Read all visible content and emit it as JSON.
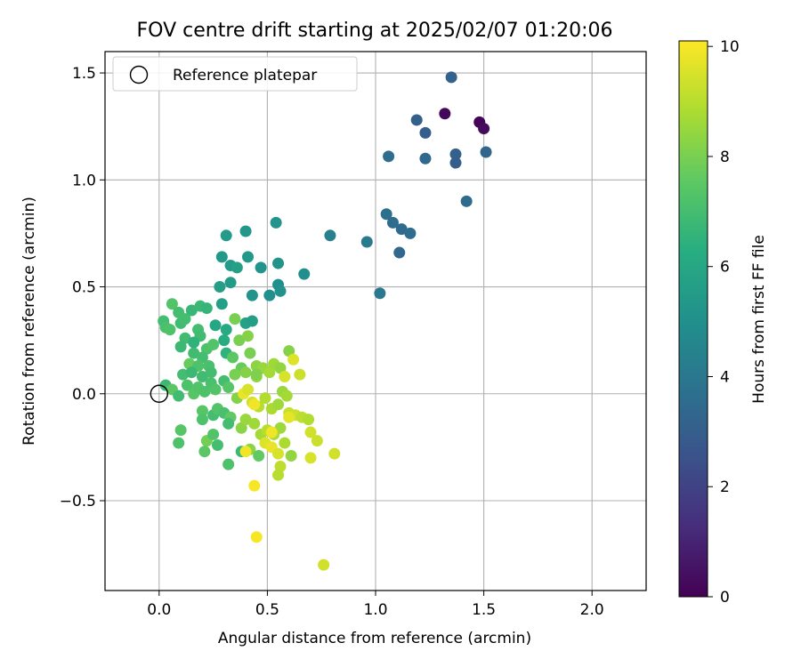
{
  "chart_data": {
    "type": "scatter",
    "title": "FOV centre drift starting at 2025/02/07 01:20:06",
    "xlabel": "Angular distance from reference (arcmin)",
    "ylabel": "Rotation from reference (arcmin)",
    "xlim": [
      -0.25,
      2.25
    ],
    "ylim": [
      -0.92,
      1.6
    ],
    "xticks": [
      0.0,
      0.5,
      1.0,
      1.5,
      2.0
    ],
    "xtick_labels": [
      "0.0",
      "0.5",
      "1.0",
      "1.5",
      "2.0"
    ],
    "yticks": [
      -0.5,
      0.0,
      0.5,
      1.0,
      1.5
    ],
    "ytick_labels": [
      "−0.5",
      "0.0",
      "0.5",
      "1.0",
      "1.5"
    ],
    "grid": true,
    "legend": {
      "placement": "top-left",
      "entries": [
        {
          "label": "Reference platepar",
          "marker": "open-circle"
        }
      ]
    },
    "reference_point": {
      "x": 0.0,
      "y": 0.0
    },
    "colorbar": {
      "label": "Hours from first FF file",
      "colormap": "viridis",
      "range": [
        0,
        10.1
      ],
      "ticks": [
        0,
        2,
        4,
        6,
        8,
        10
      ],
      "tick_labels": [
        "0",
        "2",
        "4",
        "6",
        "8",
        "10"
      ]
    },
    "points": [
      {
        "x": 1.32,
        "y": 1.31,
        "c": 0.2
      },
      {
        "x": 1.48,
        "y": 1.27,
        "c": 0.1
      },
      {
        "x": 1.5,
        "y": 1.24,
        "c": 0.3
      },
      {
        "x": 1.35,
        "y": 1.48,
        "c": 3.2
      },
      {
        "x": 1.19,
        "y": 1.28,
        "c": 3.1
      },
      {
        "x": 1.23,
        "y": 1.22,
        "c": 3.0
      },
      {
        "x": 1.37,
        "y": 1.12,
        "c": 3.1
      },
      {
        "x": 1.37,
        "y": 1.08,
        "c": 3.0
      },
      {
        "x": 1.51,
        "y": 1.13,
        "c": 3.3
      },
      {
        "x": 1.23,
        "y": 1.1,
        "c": 3.4
      },
      {
        "x": 1.06,
        "y": 1.11,
        "c": 3.6
      },
      {
        "x": 1.42,
        "y": 0.9,
        "c": 3.5
      },
      {
        "x": 1.05,
        "y": 0.84,
        "c": 3.7
      },
      {
        "x": 1.08,
        "y": 0.8,
        "c": 3.6
      },
      {
        "x": 1.12,
        "y": 0.77,
        "c": 3.5
      },
      {
        "x": 1.16,
        "y": 0.75,
        "c": 3.6
      },
      {
        "x": 1.11,
        "y": 0.66,
        "c": 3.4
      },
      {
        "x": 0.96,
        "y": 0.71,
        "c": 4.1
      },
      {
        "x": 0.79,
        "y": 0.74,
        "c": 4.3
      },
      {
        "x": 1.02,
        "y": 0.47,
        "c": 4.0
      },
      {
        "x": 0.54,
        "y": 0.8,
        "c": 5.2
      },
      {
        "x": 0.31,
        "y": 0.74,
        "c": 5.5
      },
      {
        "x": 0.4,
        "y": 0.76,
        "c": 5.3
      },
      {
        "x": 0.29,
        "y": 0.64,
        "c": 5.4
      },
      {
        "x": 0.33,
        "y": 0.6,
        "c": 5.5
      },
      {
        "x": 0.36,
        "y": 0.59,
        "c": 5.7
      },
      {
        "x": 0.41,
        "y": 0.64,
        "c": 5.4
      },
      {
        "x": 0.47,
        "y": 0.59,
        "c": 5.2
      },
      {
        "x": 0.55,
        "y": 0.61,
        "c": 5.2
      },
      {
        "x": 0.67,
        "y": 0.56,
        "c": 5.0
      },
      {
        "x": 0.28,
        "y": 0.5,
        "c": 5.6
      },
      {
        "x": 0.33,
        "y": 0.52,
        "c": 5.5
      },
      {
        "x": 0.55,
        "y": 0.51,
        "c": 5.0
      },
      {
        "x": 0.56,
        "y": 0.48,
        "c": 5.1
      },
      {
        "x": 0.51,
        "y": 0.46,
        "c": 5.0
      },
      {
        "x": 0.43,
        "y": 0.46,
        "c": 5.2
      },
      {
        "x": 0.29,
        "y": 0.42,
        "c": 5.7
      },
      {
        "x": 0.4,
        "y": 0.33,
        "c": 5.8
      },
      {
        "x": 0.43,
        "y": 0.34,
        "c": 5.6
      },
      {
        "x": 0.26,
        "y": 0.32,
        "c": 6.0
      },
      {
        "x": 0.31,
        "y": 0.3,
        "c": 6.1
      },
      {
        "x": 0.06,
        "y": 0.42,
        "c": 7.3
      },
      {
        "x": 0.09,
        "y": 0.38,
        "c": 7.0
      },
      {
        "x": 0.15,
        "y": 0.39,
        "c": 6.7
      },
      {
        "x": 0.19,
        "y": 0.41,
        "c": 6.8
      },
      {
        "x": 0.22,
        "y": 0.4,
        "c": 6.6
      },
      {
        "x": 0.1,
        "y": 0.33,
        "c": 6.9
      },
      {
        "x": 0.12,
        "y": 0.35,
        "c": 7.0
      },
      {
        "x": 0.02,
        "y": 0.34,
        "c": 7.0
      },
      {
        "x": 0.03,
        "y": 0.31,
        "c": 7.1
      },
      {
        "x": 0.05,
        "y": 0.3,
        "c": 7.2
      },
      {
        "x": 0.12,
        "y": 0.26,
        "c": 6.9
      },
      {
        "x": 0.1,
        "y": 0.22,
        "c": 6.8
      },
      {
        "x": 0.18,
        "y": 0.3,
        "c": 7.0
      },
      {
        "x": 0.19,
        "y": 0.27,
        "c": 6.9
      },
      {
        "x": 0.22,
        "y": 0.21,
        "c": 7.2
      },
      {
        "x": 0.25,
        "y": 0.23,
        "c": 7.3
      },
      {
        "x": 0.3,
        "y": 0.25,
        "c": 6.2
      },
      {
        "x": 0.35,
        "y": 0.35,
        "c": 8.0
      },
      {
        "x": 0.37,
        "y": 0.25,
        "c": 8.0
      },
      {
        "x": 0.41,
        "y": 0.27,
        "c": 8.2
      },
      {
        "x": 0.31,
        "y": 0.19,
        "c": 6.5
      },
      {
        "x": 0.34,
        "y": 0.17,
        "c": 7.5
      },
      {
        "x": 0.38,
        "y": 0.12,
        "c": 7.7
      },
      {
        "x": 0.42,
        "y": 0.19,
        "c": 8.0
      },
      {
        "x": 0.45,
        "y": 0.13,
        "c": 8.3
      },
      {
        "x": 0.14,
        "y": 0.14,
        "c": 7.7
      },
      {
        "x": 0.16,
        "y": 0.19,
        "c": 6.9
      },
      {
        "x": 0.2,
        "y": 0.17,
        "c": 7.0
      },
      {
        "x": 0.23,
        "y": 0.13,
        "c": 7.1
      },
      {
        "x": 0.18,
        "y": 0.13,
        "c": 7.2
      },
      {
        "x": 0.11,
        "y": 0.09,
        "c": 7.0
      },
      {
        "x": 0.15,
        "y": 0.1,
        "c": 6.8
      },
      {
        "x": 0.2,
        "y": 0.08,
        "c": 6.9
      },
      {
        "x": 0.24,
        "y": 0.1,
        "c": 7.0
      },
      {
        "x": 0.03,
        "y": 0.04,
        "c": 6.8
      },
      {
        "x": 0.06,
        "y": 0.02,
        "c": 7.5
      },
      {
        "x": 0.09,
        "y": -0.01,
        "c": 6.9
      },
      {
        "x": 0.13,
        "y": 0.04,
        "c": 7.2
      },
      {
        "x": 0.16,
        "y": 0.0,
        "c": 7.4
      },
      {
        "x": 0.18,
        "y": 0.03,
        "c": 7.3
      },
      {
        "x": 0.21,
        "y": 0.01,
        "c": 7.2
      },
      {
        "x": 0.24,
        "y": 0.05,
        "c": 7.1
      },
      {
        "x": 0.26,
        "y": 0.02,
        "c": 7.3
      },
      {
        "x": 0.3,
        "y": 0.06,
        "c": 7.0
      },
      {
        "x": 0.32,
        "y": 0.03,
        "c": 7.4
      },
      {
        "x": 0.35,
        "y": 0.09,
        "c": 8.0
      },
      {
        "x": 0.4,
        "y": 0.1,
        "c": 8.2
      },
      {
        "x": 0.45,
        "y": 0.08,
        "c": 8.4
      },
      {
        "x": 0.48,
        "y": 0.12,
        "c": 8.5
      },
      {
        "x": 0.51,
        "y": 0.1,
        "c": 8.7
      },
      {
        "x": 0.53,
        "y": 0.14,
        "c": 8.6
      },
      {
        "x": 0.56,
        "y": 0.12,
        "c": 8.4
      },
      {
        "x": 0.6,
        "y": 0.2,
        "c": 8.2
      },
      {
        "x": 0.62,
        "y": 0.16,
        "c": 9.6
      },
      {
        "x": 0.65,
        "y": 0.09,
        "c": 9.3
      },
      {
        "x": 0.58,
        "y": 0.08,
        "c": 9.5
      },
      {
        "x": 0.36,
        "y": -0.02,
        "c": 8.2
      },
      {
        "x": 0.39,
        "y": 0.0,
        "c": 9.8
      },
      {
        "x": 0.41,
        "y": 0.02,
        "c": 9.5
      },
      {
        "x": 0.43,
        "y": -0.04,
        "c": 9.4
      },
      {
        "x": 0.46,
        "y": -0.06,
        "c": 9.0
      },
      {
        "x": 0.49,
        "y": -0.02,
        "c": 8.9
      },
      {
        "x": 0.52,
        "y": -0.07,
        "c": 8.8
      },
      {
        "x": 0.55,
        "y": -0.05,
        "c": 8.6
      },
      {
        "x": 0.57,
        "y": 0.01,
        "c": 8.5
      },
      {
        "x": 0.59,
        "y": -0.01,
        "c": 8.7
      },
      {
        "x": 0.6,
        "y": -0.09,
        "c": 9.2
      },
      {
        "x": 0.63,
        "y": -0.1,
        "c": 9.3
      },
      {
        "x": 0.66,
        "y": -0.11,
        "c": 9.1
      },
      {
        "x": 0.69,
        "y": -0.12,
        "c": 8.9
      },
      {
        "x": 0.2,
        "y": -0.08,
        "c": 7.4
      },
      {
        "x": 0.2,
        "y": -0.12,
        "c": 7.2
      },
      {
        "x": 0.25,
        "y": -0.1,
        "c": 7.0
      },
      {
        "x": 0.27,
        "y": -0.07,
        "c": 7.3
      },
      {
        "x": 0.3,
        "y": -0.09,
        "c": 7.1
      },
      {
        "x": 0.33,
        "y": -0.11,
        "c": 7.6
      },
      {
        "x": 0.32,
        "y": -0.14,
        "c": 7.0
      },
      {
        "x": 0.38,
        "y": -0.16,
        "c": 8.3
      },
      {
        "x": 0.4,
        "y": -0.12,
        "c": 8.5
      },
      {
        "x": 0.44,
        "y": -0.14,
        "c": 8.6
      },
      {
        "x": 0.47,
        "y": -0.19,
        "c": 8.7
      },
      {
        "x": 0.5,
        "y": -0.17,
        "c": 9.0
      },
      {
        "x": 0.53,
        "y": -0.19,
        "c": 8.8
      },
      {
        "x": 0.56,
        "y": -0.16,
        "c": 8.6
      },
      {
        "x": 0.58,
        "y": -0.23,
        "c": 8.8
      },
      {
        "x": 0.61,
        "y": -0.29,
        "c": 8.4
      },
      {
        "x": 0.7,
        "y": -0.18,
        "c": 9.4
      },
      {
        "x": 0.73,
        "y": -0.22,
        "c": 9.3
      },
      {
        "x": 0.7,
        "y": -0.3,
        "c": 9.5
      },
      {
        "x": 0.81,
        "y": -0.28,
        "c": 9.4
      },
      {
        "x": 0.1,
        "y": -0.17,
        "c": 7.4
      },
      {
        "x": 0.09,
        "y": -0.23,
        "c": 7.2
      },
      {
        "x": 0.22,
        "y": -0.22,
        "c": 7.9
      },
      {
        "x": 0.21,
        "y": -0.27,
        "c": 7.5
      },
      {
        "x": 0.25,
        "y": -0.19,
        "c": 7.3
      },
      {
        "x": 0.27,
        "y": -0.24,
        "c": 7.0
      },
      {
        "x": 0.32,
        "y": -0.33,
        "c": 7.2
      },
      {
        "x": 0.38,
        "y": -0.27,
        "c": 6.8
      },
      {
        "x": 0.42,
        "y": -0.26,
        "c": 8.3
      },
      {
        "x": 0.46,
        "y": -0.29,
        "c": 7.6
      },
      {
        "x": 0.49,
        "y": -0.23,
        "c": 9.6
      },
      {
        "x": 0.52,
        "y": -0.25,
        "c": 9.8
      },
      {
        "x": 0.55,
        "y": -0.28,
        "c": 9.5
      },
      {
        "x": 0.56,
        "y": -0.34,
        "c": 9.1
      },
      {
        "x": 0.55,
        "y": -0.38,
        "c": 9.0
      },
      {
        "x": 0.44,
        "y": -0.43,
        "c": 10.0
      },
      {
        "x": 0.45,
        "y": -0.67,
        "c": 10.0
      },
      {
        "x": 0.76,
        "y": -0.8,
        "c": 9.4
      },
      {
        "x": 0.4,
        "y": -0.27,
        "c": 9.9
      },
      {
        "x": 0.44,
        "y": -0.05,
        "c": 9.9
      },
      {
        "x": 0.52,
        "y": -0.18,
        "c": 9.9
      },
      {
        "x": 0.6,
        "y": -0.11,
        "c": 9.7
      },
      {
        "x": 0.45,
        "y": 0.09,
        "c": 8.1
      },
      {
        "x": 0.16,
        "y": 0.24,
        "c": 6.5
      }
    ]
  }
}
